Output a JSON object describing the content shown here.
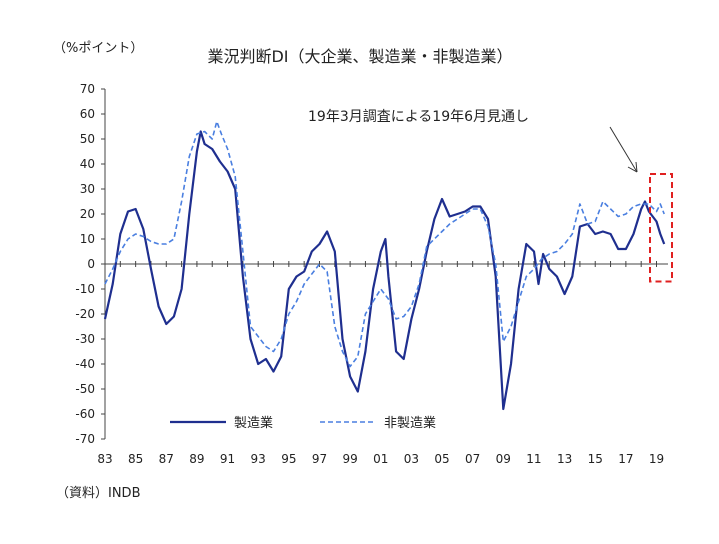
{
  "chart_data": {
    "type": "line",
    "title": "業況判断DI（大企業、製造業・非製造業）",
    "ylabel": "（%ポイント）",
    "source": "（資料）INDB",
    "annotation": "19年3月調査による19年6月見通し",
    "ylim": [
      -70,
      70
    ],
    "xlim": [
      1983,
      2019.75
    ],
    "grid": false,
    "legend_position": "bottom-left",
    "y_ticks": [
      70,
      60,
      50,
      40,
      30,
      20,
      10,
      0,
      -10,
      -20,
      -30,
      -40,
      -50,
      -60,
      -70
    ],
    "x_tick_labels": [
      "83",
      "85",
      "87",
      "89",
      "91",
      "93",
      "95",
      "97",
      "99",
      "01",
      "03",
      "05",
      "07",
      "09",
      "11",
      "13",
      "15",
      "17",
      "19"
    ],
    "x_tick_values": [
      1983,
      1985,
      1987,
      1989,
      1991,
      1993,
      1995,
      1997,
      1999,
      2001,
      2003,
      2005,
      2007,
      2009,
      2011,
      2013,
      2015,
      2017,
      2019
    ],
    "series": [
      {
        "name": "製造業",
        "color": "#1f2f8f",
        "style": "solid",
        "points": [
          [
            1983.0,
            -22
          ],
          [
            1983.5,
            -8
          ],
          [
            1984.0,
            12
          ],
          [
            1984.5,
            21
          ],
          [
            1985.0,
            22
          ],
          [
            1985.5,
            14
          ],
          [
            1986.0,
            -2
          ],
          [
            1986.5,
            -17
          ],
          [
            1987.0,
            -24
          ],
          [
            1987.5,
            -21
          ],
          [
            1988.0,
            -10
          ],
          [
            1988.5,
            20
          ],
          [
            1989.0,
            45
          ],
          [
            1989.25,
            53
          ],
          [
            1989.5,
            48
          ],
          [
            1990.0,
            46
          ],
          [
            1990.5,
            41
          ],
          [
            1991.0,
            37
          ],
          [
            1991.5,
            30
          ],
          [
            1992.0,
            -5
          ],
          [
            1992.5,
            -30
          ],
          [
            1993.0,
            -40
          ],
          [
            1993.5,
            -38
          ],
          [
            1994.0,
            -43
          ],
          [
            1994.5,
            -37
          ],
          [
            1995.0,
            -10
          ],
          [
            1995.5,
            -5
          ],
          [
            1996.0,
            -3
          ],
          [
            1996.5,
            5
          ],
          [
            1997.0,
            8
          ],
          [
            1997.5,
            13
          ],
          [
            1998.0,
            5
          ],
          [
            1998.5,
            -30
          ],
          [
            1999.0,
            -45
          ],
          [
            1999.5,
            -51
          ],
          [
            2000.0,
            -35
          ],
          [
            2000.5,
            -10
          ],
          [
            2001.0,
            5
          ],
          [
            2001.3,
            10
          ],
          [
            2001.5,
            -5
          ],
          [
            2002.0,
            -35
          ],
          [
            2002.5,
            -38
          ],
          [
            2003.0,
            -22
          ],
          [
            2003.5,
            -10
          ],
          [
            2004.0,
            5
          ],
          [
            2004.5,
            18
          ],
          [
            2005.0,
            26
          ],
          [
            2005.5,
            19
          ],
          [
            2006.0,
            20
          ],
          [
            2006.5,
            21
          ],
          [
            2007.0,
            23
          ],
          [
            2007.5,
            23
          ],
          [
            2008.0,
            18
          ],
          [
            2008.5,
            -5
          ],
          [
            2009.0,
            -58
          ],
          [
            2009.5,
            -40
          ],
          [
            2010.0,
            -10
          ],
          [
            2010.5,
            8
          ],
          [
            2011.0,
            5
          ],
          [
            2011.3,
            -8
          ],
          [
            2011.6,
            4
          ],
          [
            2012.0,
            -2
          ],
          [
            2012.5,
            -5
          ],
          [
            2013.0,
            -12
          ],
          [
            2013.5,
            -5
          ],
          [
            2014.0,
            15
          ],
          [
            2014.5,
            16
          ],
          [
            2015.0,
            12
          ],
          [
            2015.5,
            13
          ],
          [
            2016.0,
            12
          ],
          [
            2016.5,
            6
          ],
          [
            2017.0,
            6
          ],
          [
            2017.5,
            12
          ],
          [
            2018.0,
            22
          ],
          [
            2018.25,
            25
          ],
          [
            2018.5,
            21
          ],
          [
            2019.0,
            17
          ],
          [
            2019.25,
            12
          ],
          [
            2019.5,
            8
          ]
        ]
      },
      {
        "name": "非製造業",
        "color": "#4a7fe0",
        "style": "dashed",
        "points": [
          [
            1983.0,
            -8
          ],
          [
            1983.5,
            -2
          ],
          [
            1984.0,
            5
          ],
          [
            1984.5,
            10
          ],
          [
            1985.0,
            12
          ],
          [
            1985.5,
            11
          ],
          [
            1986.0,
            9
          ],
          [
            1986.5,
            8
          ],
          [
            1987.0,
            8
          ],
          [
            1987.5,
            10
          ],
          [
            1988.0,
            25
          ],
          [
            1988.5,
            43
          ],
          [
            1989.0,
            52
          ],
          [
            1989.5,
            53
          ],
          [
            1990.0,
            50
          ],
          [
            1990.3,
            57
          ],
          [
            1990.6,
            52
          ],
          [
            1991.0,
            46
          ],
          [
            1991.5,
            35
          ],
          [
            1992.0,
            5
          ],
          [
            1992.5,
            -25
          ],
          [
            1993.0,
            -29
          ],
          [
            1993.5,
            -33
          ],
          [
            1994.0,
            -35
          ],
          [
            1994.5,
            -30
          ],
          [
            1995.0,
            -20
          ],
          [
            1995.5,
            -15
          ],
          [
            1996.0,
            -8
          ],
          [
            1996.5,
            -4
          ],
          [
            1997.0,
            0
          ],
          [
            1997.5,
            -3
          ],
          [
            1998.0,
            -25
          ],
          [
            1998.5,
            -35
          ],
          [
            1999.0,
            -41
          ],
          [
            1999.5,
            -37
          ],
          [
            2000.0,
            -20
          ],
          [
            2000.5,
            -15
          ],
          [
            2001.0,
            -10
          ],
          [
            2001.5,
            -14
          ],
          [
            2002.0,
            -22
          ],
          [
            2002.5,
            -21
          ],
          [
            2003.0,
            -17
          ],
          [
            2003.5,
            -8
          ],
          [
            2004.0,
            7
          ],
          [
            2004.5,
            10
          ],
          [
            2005.0,
            13
          ],
          [
            2005.5,
            16
          ],
          [
            2006.0,
            18
          ],
          [
            2006.5,
            20
          ],
          [
            2007.0,
            22
          ],
          [
            2007.5,
            22
          ],
          [
            2008.0,
            15
          ],
          [
            2008.5,
            0
          ],
          [
            2009.0,
            -31
          ],
          [
            2009.5,
            -25
          ],
          [
            2010.0,
            -15
          ],
          [
            2010.5,
            -5
          ],
          [
            2011.0,
            -2
          ],
          [
            2011.5,
            2
          ],
          [
            2012.0,
            4
          ],
          [
            2012.5,
            5
          ],
          [
            2013.0,
            8
          ],
          [
            2013.5,
            12
          ],
          [
            2014.0,
            24
          ],
          [
            2014.5,
            16
          ],
          [
            2015.0,
            17
          ],
          [
            2015.5,
            25
          ],
          [
            2016.0,
            22
          ],
          [
            2016.5,
            19
          ],
          [
            2017.0,
            20
          ],
          [
            2017.5,
            23
          ],
          [
            2018.0,
            24
          ],
          [
            2018.5,
            24
          ],
          [
            2019.0,
            21
          ],
          [
            2019.25,
            24
          ],
          [
            2019.5,
            20
          ]
        ]
      }
    ]
  }
}
